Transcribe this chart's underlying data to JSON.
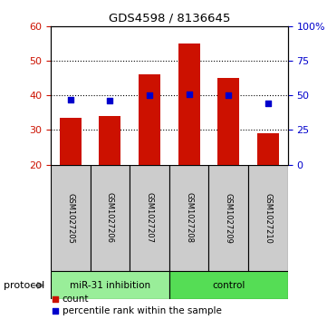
{
  "title": "GDS4598 / 8136645",
  "samples": [
    "GSM1027205",
    "GSM1027206",
    "GSM1027207",
    "GSM1027208",
    "GSM1027209",
    "GSM1027210"
  ],
  "counts": [
    33.5,
    34.0,
    46.0,
    55.0,
    45.0,
    29.0
  ],
  "percentiles": [
    47,
    46,
    50,
    51,
    50,
    44
  ],
  "ymin": 20,
  "ymax": 60,
  "yticks_left": [
    20,
    30,
    40,
    50,
    60
  ],
  "yticks_right": [
    0,
    25,
    50,
    75,
    100
  ],
  "bar_color": "#cc1100",
  "dot_color": "#0000cc",
  "group1_label": "miR-31 inhibition",
  "group2_label": "control",
  "group1_color": "#99ee99",
  "group2_color": "#55dd55",
  "sample_box_color": "#cccccc",
  "protocol_label": "protocol",
  "legend_count": "count",
  "legend_percentile": "percentile rank within the sample",
  "bar_bottom": 20,
  "bar_width": 0.55,
  "grid_lines": [
    30,
    40,
    50
  ]
}
